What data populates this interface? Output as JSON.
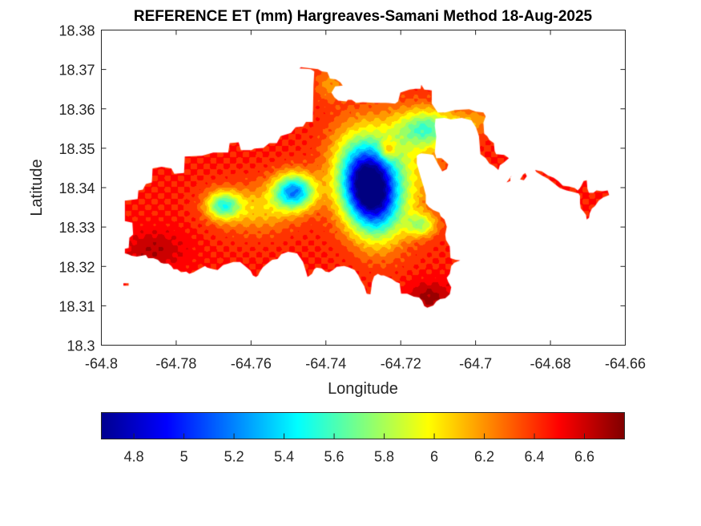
{
  "chart_data": {
    "type": "heatmap",
    "subtype": "filled-contour-map",
    "title": "REFERENCE ET (mm) Hargreaves-Samani Method  18-Aug-2025",
    "xlabel": "Longitude",
    "ylabel": "Latitude",
    "xlim": [
      -64.8,
      -64.66
    ],
    "ylim": [
      18.3,
      18.38
    ],
    "xticks": [
      -64.8,
      -64.78,
      -64.76,
      -64.74,
      -64.72,
      -64.7,
      -64.68,
      -64.66
    ],
    "xtick_labels": [
      "-64.8",
      "-64.78",
      "-64.76",
      "-64.74",
      "-64.72",
      "-64.7",
      "-64.68",
      "-64.66"
    ],
    "yticks": [
      18.3,
      18.31,
      18.32,
      18.33,
      18.34,
      18.35,
      18.36,
      18.37,
      18.38
    ],
    "ytick_labels": [
      "18.3",
      "18.31",
      "18.32",
      "18.33",
      "18.34",
      "18.35",
      "18.36",
      "18.37",
      "18.38"
    ],
    "grid": false,
    "box": true,
    "colormap": "jet",
    "colorbar": {
      "location": "south",
      "range": [
        4.67,
        6.76
      ],
      "ticks": [
        4.8,
        5.0,
        5.2,
        5.4,
        5.6,
        5.8,
        6.0,
        6.2,
        6.4,
        6.6
      ],
      "tick_labels": [
        "4.8",
        "5",
        "5.2",
        "5.4",
        "5.6",
        "5.8",
        "6",
        "6.2",
        "6.4",
        "6.6"
      ]
    },
    "contour_levels": 20,
    "field_features": [
      {
        "name": "central-minimum",
        "lon": -64.7285,
        "lat": 18.3395,
        "value": 4.7
      },
      {
        "name": "west-center-low",
        "lon": -64.7485,
        "lat": 18.339,
        "value": 5.25
      },
      {
        "name": "west-secondary-low",
        "lon": -64.7675,
        "lat": 18.3355,
        "value": 5.65
      },
      {
        "name": "northeast-plateau",
        "lon": -64.7135,
        "lat": 18.3555,
        "value": 5.65
      },
      {
        "name": "northeast-yellow-spot",
        "lon": -64.7235,
        "lat": 18.3495,
        "value": 6.0
      },
      {
        "name": "southwest-maximum",
        "lon": -64.786,
        "lat": 18.322,
        "value": 6.72
      },
      {
        "name": "south-maximum",
        "lon": -64.712,
        "lat": 18.311,
        "value": 6.72
      },
      {
        "name": "east-arm",
        "lon": -64.6705,
        "lat": 18.337,
        "value": 6.5
      }
    ],
    "value_range_observed": [
      4.7,
      6.75
    ]
  }
}
